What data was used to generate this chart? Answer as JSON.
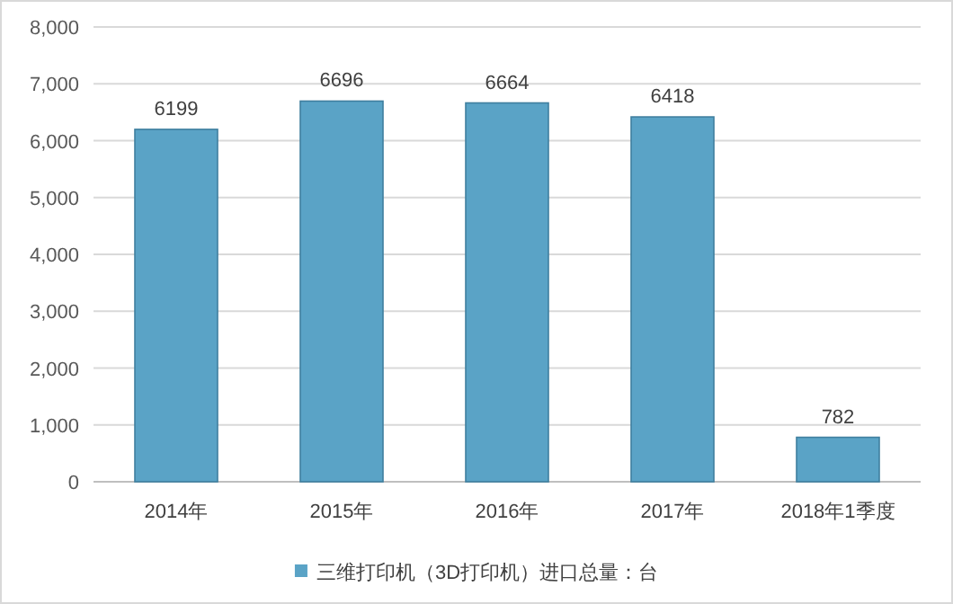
{
  "chart_data": {
    "type": "bar",
    "categories": [
      "2014年",
      "2015年",
      "2016年",
      "2017年",
      "2018年1季度"
    ],
    "series": [
      {
        "name": "三维打印机（3D打印机）进口总量：台",
        "color": "#5aa3c6",
        "values": [
          6199,
          6696,
          6664,
          6418,
          782
        ]
      }
    ],
    "ylim": [
      0,
      8000
    ],
    "yticks": [
      {
        "value": 0,
        "label": "0"
      },
      {
        "value": 1000,
        "label": "1,000"
      },
      {
        "value": 2000,
        "label": "2,000"
      },
      {
        "value": 3000,
        "label": "3,000"
      },
      {
        "value": 4000,
        "label": "4,000"
      },
      {
        "value": 5000,
        "label": "5,000"
      },
      {
        "value": 6000,
        "label": "6,000"
      },
      {
        "value": 7000,
        "label": "7,000"
      },
      {
        "value": 8000,
        "label": "8,000"
      }
    ],
    "grid": "y",
    "legend": "bottom",
    "data_labels": true
  }
}
